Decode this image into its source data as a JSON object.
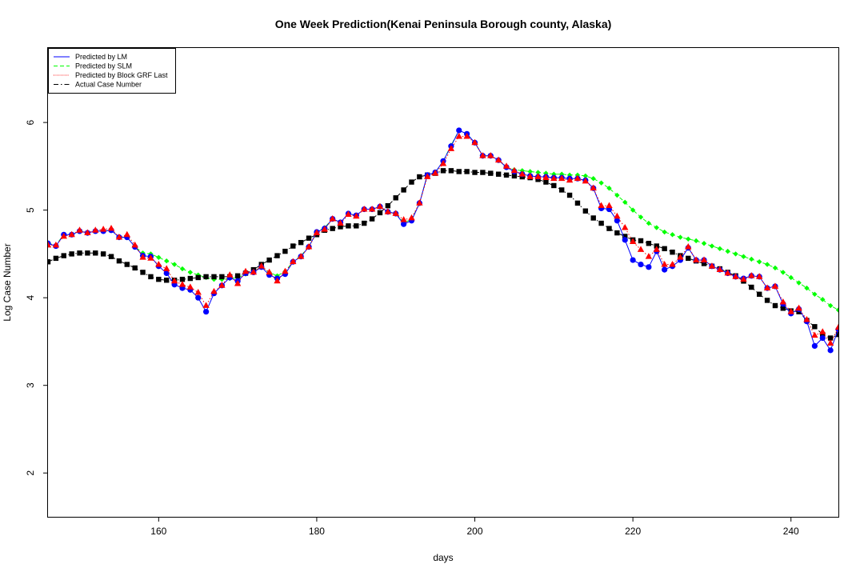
{
  "chart_data": {
    "type": "line",
    "title": "One Week Prediction(Kenai Peninsula Borough county, Alaska)",
    "xlabel": "days",
    "ylabel": "Log Case Number",
    "xlim": [
      146,
      246
    ],
    "ylim": [
      1.5,
      6.85
    ],
    "xticks": [
      160,
      180,
      200,
      220,
      240
    ],
    "yticks": [
      2,
      3,
      4,
      5,
      6
    ],
    "xtick_labels": [
      "160",
      "180",
      "200",
      "220",
      "240"
    ],
    "ytick_labels": [
      "2",
      "3",
      "4",
      "5",
      "6"
    ],
    "grid": false,
    "legend_position": "top-left",
    "x": [
      146,
      147,
      148,
      149,
      150,
      151,
      152,
      153,
      154,
      155,
      156,
      157,
      158,
      159,
      160,
      161,
      162,
      163,
      164,
      165,
      166,
      167,
      168,
      169,
      170,
      171,
      172,
      173,
      174,
      175,
      176,
      177,
      178,
      179,
      180,
      181,
      182,
      183,
      184,
      185,
      186,
      187,
      188,
      189,
      190,
      191,
      192,
      193,
      194,
      195,
      196,
      197,
      198,
      199,
      200,
      201,
      202,
      203,
      204,
      205,
      206,
      207,
      208,
      209,
      210,
      211,
      212,
      213,
      214,
      215,
      216,
      217,
      218,
      219,
      220,
      221,
      222,
      223,
      224,
      225,
      226,
      227,
      228,
      229,
      230,
      231,
      232,
      233,
      234,
      235,
      236,
      237,
      238,
      239,
      240,
      241,
      242,
      243,
      244,
      245,
      246
    ],
    "series": [
      {
        "name": "Predicted by LM",
        "color": "#0000ff",
        "line": "solid",
        "marker": "circle",
        "values": [
          4.62,
          4.59,
          4.72,
          4.72,
          4.76,
          4.74,
          4.76,
          4.76,
          4.77,
          4.69,
          4.69,
          4.58,
          4.48,
          4.47,
          4.36,
          4.28,
          4.15,
          4.11,
          4.09,
          4.0,
          3.84,
          4.05,
          4.14,
          4.23,
          4.19,
          4.28,
          4.29,
          4.35,
          4.26,
          4.22,
          4.27,
          4.41,
          4.47,
          4.58,
          4.75,
          4.79,
          4.9,
          4.86,
          4.96,
          4.94,
          5.01,
          5.01,
          5.04,
          4.98,
          4.96,
          4.84,
          4.88,
          5.08,
          5.4,
          5.43,
          5.56,
          5.73,
          5.91,
          5.87,
          5.77,
          5.62,
          5.62,
          5.57,
          5.49,
          5.44,
          5.41,
          5.39,
          5.38,
          5.38,
          5.37,
          5.37,
          5.36,
          5.36,
          5.34,
          5.25,
          5.02,
          5.01,
          4.88,
          4.66,
          4.43,
          4.38,
          4.35,
          4.53,
          4.32,
          4.36,
          4.43,
          4.57,
          4.43,
          4.43,
          4.36,
          4.32,
          4.28,
          4.24,
          4.22,
          4.25,
          4.24,
          4.11,
          4.13,
          3.93,
          3.82,
          3.87,
          3.73,
          3.45,
          3.54,
          3.4,
          3.64
        ]
      },
      {
        "name": "Predicted by SLM",
        "color": "#00ff00",
        "line": "dashed",
        "marker": "diamond",
        "values": [
          4.62,
          4.6,
          4.72,
          4.72,
          4.76,
          4.74,
          4.76,
          4.76,
          4.77,
          4.69,
          4.69,
          4.58,
          4.51,
          4.5,
          4.46,
          4.42,
          4.38,
          4.33,
          4.29,
          4.26,
          4.23,
          4.21,
          4.21,
          4.22,
          4.23,
          4.27,
          4.3,
          4.35,
          4.29,
          4.25,
          4.3,
          4.41,
          4.48,
          4.58,
          4.75,
          4.8,
          4.9,
          4.86,
          4.96,
          4.94,
          5.01,
          5.01,
          5.04,
          4.98,
          4.96,
          4.86,
          4.89,
          5.08,
          5.4,
          5.43,
          5.56,
          5.74,
          5.91,
          5.87,
          5.77,
          5.62,
          5.62,
          5.57,
          5.49,
          5.46,
          5.45,
          5.44,
          5.43,
          5.42,
          5.41,
          5.41,
          5.4,
          5.4,
          5.39,
          5.36,
          5.31,
          5.25,
          5.17,
          5.09,
          5.0,
          4.92,
          4.85,
          4.8,
          4.75,
          4.72,
          4.69,
          4.67,
          4.65,
          4.62,
          4.59,
          4.56,
          4.53,
          4.5,
          4.47,
          4.44,
          4.41,
          4.38,
          4.34,
          4.29,
          4.23,
          4.17,
          4.11,
          4.04,
          3.98,
          3.91,
          3.86
        ]
      },
      {
        "name": "Predicted by Block GRF Last",
        "color": "#ff0000",
        "line": "dotted",
        "marker": "triangle",
        "values": [
          4.6,
          4.6,
          4.7,
          4.72,
          4.77,
          4.74,
          4.77,
          4.78,
          4.79,
          4.69,
          4.72,
          4.6,
          4.46,
          4.45,
          4.38,
          4.33,
          4.19,
          4.15,
          4.12,
          4.06,
          3.91,
          4.07,
          4.14,
          4.26,
          4.16,
          4.3,
          4.29,
          4.36,
          4.29,
          4.19,
          4.3,
          4.41,
          4.47,
          4.58,
          4.74,
          4.78,
          4.9,
          4.85,
          4.95,
          4.93,
          5.01,
          5.01,
          5.04,
          4.98,
          4.96,
          4.89,
          4.91,
          5.08,
          5.38,
          5.42,
          5.53,
          5.7,
          5.84,
          5.84,
          5.77,
          5.62,
          5.62,
          5.57,
          5.5,
          5.45,
          5.41,
          5.38,
          5.38,
          5.37,
          5.36,
          5.36,
          5.34,
          5.36,
          5.33,
          5.25,
          5.05,
          5.05,
          4.93,
          4.8,
          4.64,
          4.55,
          4.47,
          4.55,
          4.38,
          4.38,
          4.46,
          4.58,
          4.43,
          4.43,
          4.36,
          4.32,
          4.28,
          4.24,
          4.21,
          4.25,
          4.24,
          4.11,
          4.13,
          3.95,
          3.84,
          3.88,
          3.75,
          3.57,
          3.61,
          3.48,
          3.66
        ]
      },
      {
        "name": "Actual Case Number",
        "color": "#000000",
        "line": "dashdot",
        "marker": "square",
        "values": [
          4.41,
          4.45,
          4.48,
          4.5,
          4.51,
          4.51,
          4.51,
          4.5,
          4.47,
          4.42,
          4.38,
          4.34,
          4.29,
          4.24,
          4.21,
          4.2,
          4.2,
          4.21,
          4.22,
          4.23,
          4.24,
          4.24,
          4.24,
          4.24,
          4.25,
          4.28,
          4.32,
          4.38,
          4.43,
          4.48,
          4.53,
          4.59,
          4.63,
          4.68,
          4.72,
          4.77,
          4.79,
          4.81,
          4.82,
          4.82,
          4.85,
          4.9,
          4.97,
          5.05,
          5.14,
          5.23,
          5.32,
          5.38,
          5.4,
          5.42,
          5.45,
          5.45,
          5.44,
          5.44,
          5.43,
          5.43,
          5.42,
          5.41,
          5.4,
          5.39,
          5.38,
          5.37,
          5.35,
          5.32,
          5.28,
          5.23,
          5.17,
          5.08,
          4.99,
          4.91,
          4.85,
          4.79,
          4.74,
          4.7,
          4.66,
          4.65,
          4.62,
          4.59,
          4.56,
          4.52,
          4.48,
          4.45,
          4.42,
          4.39,
          4.36,
          4.33,
          4.29,
          4.25,
          4.19,
          4.12,
          4.04,
          3.97,
          3.91,
          3.88,
          3.85,
          3.84,
          3.74,
          3.67,
          3.58,
          3.54,
          3.58
        ]
      }
    ]
  }
}
